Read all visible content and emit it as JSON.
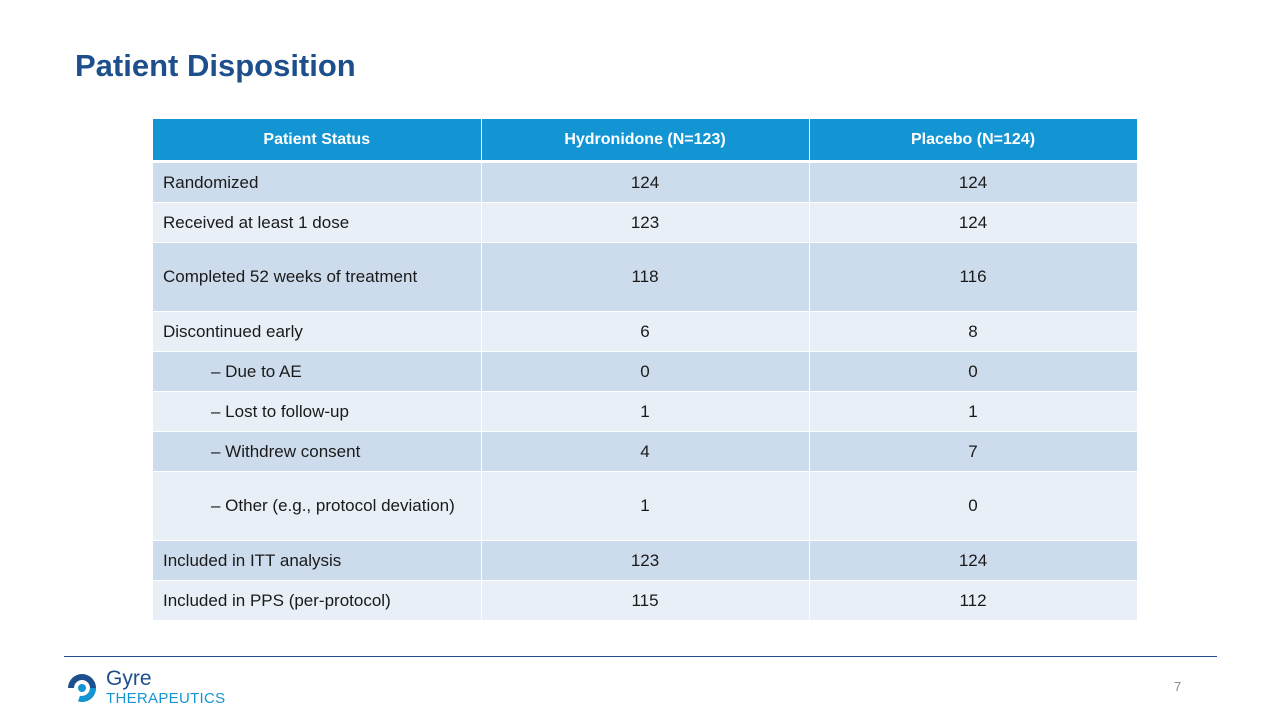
{
  "title": "Patient Disposition",
  "table": {
    "headers": [
      "Patient Status",
      "Hydronidone (N=123)",
      "Placebo (N=124)"
    ],
    "rows": [
      {
        "label": "Randomized",
        "hydronidone": "124",
        "placebo": "124"
      },
      {
        "label": "Received at least 1 dose",
        "hydronidone": "123",
        "placebo": "124"
      },
      {
        "label": "Completed 52 weeks of treatment",
        "hydronidone": "118",
        "placebo": "116"
      },
      {
        "label": "Discontinued early",
        "hydronidone": "6",
        "placebo": "8"
      },
      {
        "label": "– Due to AE",
        "hydronidone": "0",
        "placebo": "0"
      },
      {
        "label": "– Lost to follow-up",
        "hydronidone": "1",
        "placebo": "1"
      },
      {
        "label": "– Withdrew consent",
        "hydronidone": "4",
        "placebo": "7"
      },
      {
        "label": "– Other (e.g., protocol deviation)",
        "hydronidone": "1",
        "placebo": "0"
      },
      {
        "label": "Included in ITT analysis",
        "hydronidone": "123",
        "placebo": "124"
      },
      {
        "label": "Included in PPS (per-protocol)",
        "hydronidone": "115",
        "placebo": "112"
      }
    ]
  },
  "footer": {
    "logo_name": "Gyre",
    "logo_sub": "THERAPEUTICS",
    "page_number": "7"
  },
  "colors": {
    "title": "#1d4f8c",
    "header_bg": "#1495d3",
    "row_dark": "#cddcec",
    "row_light": "#e8eff7"
  }
}
